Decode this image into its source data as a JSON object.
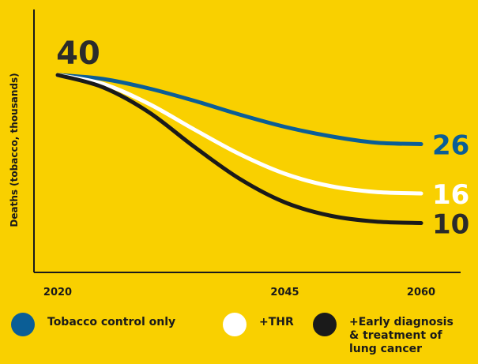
{
  "chart_data": {
    "type": "line",
    "x": [
      2020,
      2025,
      2030,
      2035,
      2040,
      2045,
      2050,
      2055,
      2060
    ],
    "xticks": [
      "2020",
      "2045",
      "2060"
    ],
    "xlim": [
      2020,
      2060
    ],
    "ylim": [
      0,
      42
    ],
    "ylabel": "Deaths (tobacco, thousands)",
    "start_label": "40",
    "series": [
      {
        "name": "Tobacco control only",
        "color": "#0B5E96",
        "values": [
          40,
          39.2,
          37.3,
          34.8,
          32.0,
          29.5,
          27.6,
          26.3,
          26
        ],
        "end_label": "26"
      },
      {
        "name": "+THR",
        "color": "#FFFFFF",
        "values": [
          40,
          38.2,
          34.2,
          29.0,
          24.0,
          20.0,
          17.5,
          16.3,
          16
        ],
        "end_label": "16"
      },
      {
        "name": "+Early diagnosis & treatment of lung cancer",
        "color": "#1a1a1a",
        "values": [
          40,
          37.5,
          32.5,
          25.5,
          19.0,
          14.2,
          11.5,
          10.3,
          10
        ],
        "end_label": "10"
      }
    ],
    "grid": false,
    "legend_position": "bottom"
  },
  "legend": [
    {
      "label": "Tobacco control only",
      "color": "#0B5E96"
    },
    {
      "label": "+THR",
      "color": "#FFFFFF"
    },
    {
      "label": "+Early diagnosis\n& treatment of\nlung cancer",
      "color": "#1a1a1a"
    }
  ]
}
